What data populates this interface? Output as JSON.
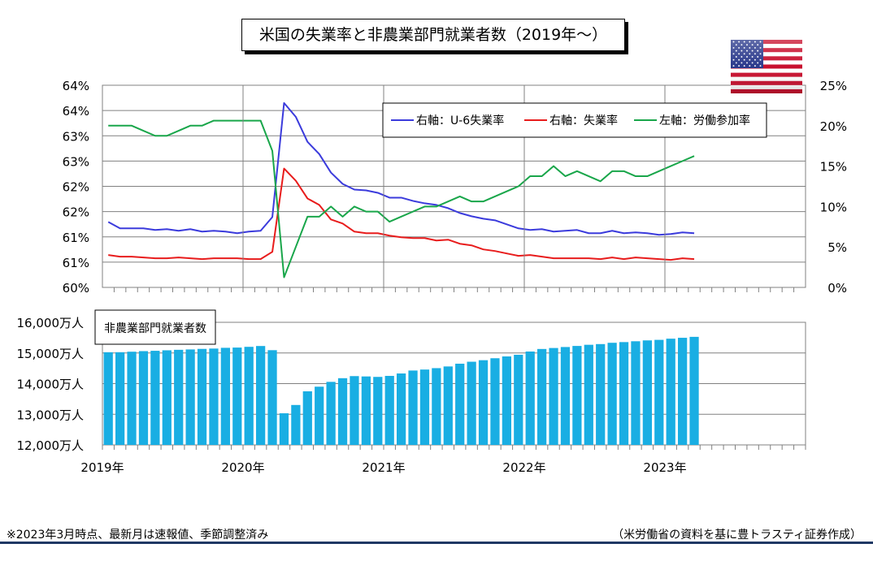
{
  "title": "米国の失業率と非農業部門就業者数（2019年～）",
  "colors": {
    "u6": "#3b3bdc",
    "unemployment": "#e81c1c",
    "participation": "#19a64a",
    "bars": "#19aee3",
    "footer_bar": "#1f3864"
  },
  "footnote": "※2023年3月時点、最新月は速報値、季節調整済み",
  "source": "（米労働省の資料を基に豊トラスティ証券作成）",
  "flag_icon": "us-flag-icon",
  "chart_data": [
    {
      "type": "line",
      "legend_position": "top-right",
      "x": [
        "2019-01",
        "2019-02",
        "2019-03",
        "2019-04",
        "2019-05",
        "2019-06",
        "2019-07",
        "2019-08",
        "2019-09",
        "2019-10",
        "2019-11",
        "2019-12",
        "2020-01",
        "2020-02",
        "2020-03",
        "2020-04",
        "2020-05",
        "2020-06",
        "2020-07",
        "2020-08",
        "2020-09",
        "2020-10",
        "2020-11",
        "2020-12",
        "2021-01",
        "2021-02",
        "2021-03",
        "2021-04",
        "2021-05",
        "2021-06",
        "2021-07",
        "2021-08",
        "2021-09",
        "2021-10",
        "2021-11",
        "2021-12",
        "2022-01",
        "2022-02",
        "2022-03",
        "2022-04",
        "2022-05",
        "2022-06",
        "2022-07",
        "2022-08",
        "2022-09",
        "2022-10",
        "2022-11",
        "2022-12",
        "2023-01",
        "2023-02",
        "2023-03"
      ],
      "x_tick_labels": [
        "2019年",
        "2020年",
        "2021年",
        "2022年",
        "2023年"
      ],
      "y_left_tick_labels": [
        "64%",
        "64%",
        "63%",
        "63%",
        "62%",
        "62%",
        "61%",
        "61%",
        "60%"
      ],
      "y_left_range": [
        60,
        64
      ],
      "y_right_tick_labels": [
        "25%",
        "20%",
        "15%",
        "10%",
        "5%",
        "0%"
      ],
      "y_right_range": [
        0,
        25
      ],
      "series": [
        {
          "name": "右軸：U-6失業率",
          "axis": "right",
          "color_key": "u6",
          "values": [
            8.1,
            7.3,
            7.3,
            7.3,
            7.1,
            7.2,
            7.0,
            7.2,
            6.9,
            7.0,
            6.9,
            6.7,
            6.9,
            7.0,
            8.7,
            22.8,
            21.1,
            18.0,
            16.5,
            14.2,
            12.8,
            12.1,
            12.0,
            11.7,
            11.1,
            11.1,
            10.7,
            10.4,
            10.2,
            9.8,
            9.2,
            8.8,
            8.5,
            8.3,
            7.8,
            7.3,
            7.1,
            7.2,
            6.9,
            7.0,
            7.1,
            6.7,
            6.7,
            7.0,
            6.7,
            6.8,
            6.7,
            6.5,
            6.6,
            6.8,
            6.7
          ]
        },
        {
          "name": "右軸：失業率",
          "axis": "right",
          "color_key": "unemployment",
          "values": [
            4.0,
            3.8,
            3.8,
            3.7,
            3.6,
            3.6,
            3.7,
            3.6,
            3.5,
            3.6,
            3.6,
            3.6,
            3.5,
            3.5,
            4.4,
            14.7,
            13.2,
            11.0,
            10.2,
            8.4,
            7.9,
            6.9,
            6.7,
            6.7,
            6.4,
            6.2,
            6.1,
            6.1,
            5.8,
            5.9,
            5.4,
            5.2,
            4.7,
            4.5,
            4.2,
            3.9,
            4.0,
            3.8,
            3.6,
            3.6,
            3.6,
            3.6,
            3.5,
            3.7,
            3.5,
            3.7,
            3.6,
            3.5,
            3.4,
            3.6,
            3.5
          ]
        },
        {
          "name": "左軸：労働参加率",
          "axis": "left",
          "color_key": "participation",
          "values": [
            63.2,
            63.2,
            63.2,
            63.1,
            63.0,
            63.0,
            63.1,
            63.2,
            63.2,
            63.3,
            63.3,
            63.3,
            63.3,
            63.3,
            62.7,
            60.2,
            60.8,
            61.4,
            61.4,
            61.6,
            61.4,
            61.6,
            61.5,
            61.5,
            61.3,
            61.4,
            61.5,
            61.6,
            61.6,
            61.7,
            61.8,
            61.7,
            61.7,
            61.8,
            61.9,
            62.0,
            62.2,
            62.2,
            62.4,
            62.2,
            62.3,
            62.2,
            62.1,
            62.3,
            62.3,
            62.2,
            62.2,
            62.3,
            62.4,
            62.5,
            62.6
          ]
        }
      ]
    },
    {
      "type": "bar",
      "title": "非農業部門就業者数",
      "x": [
        "2019-01",
        "2019-02",
        "2019-03",
        "2019-04",
        "2019-05",
        "2019-06",
        "2019-07",
        "2019-08",
        "2019-09",
        "2019-10",
        "2019-11",
        "2019-12",
        "2020-01",
        "2020-02",
        "2020-03",
        "2020-04",
        "2020-05",
        "2020-06",
        "2020-07",
        "2020-08",
        "2020-09",
        "2020-10",
        "2020-11",
        "2020-12",
        "2021-01",
        "2021-02",
        "2021-03",
        "2021-04",
        "2021-05",
        "2021-06",
        "2021-07",
        "2021-08",
        "2021-09",
        "2021-10",
        "2021-11",
        "2021-12",
        "2022-01",
        "2022-02",
        "2022-03",
        "2022-04",
        "2022-05",
        "2022-06",
        "2022-07",
        "2022-08",
        "2022-09",
        "2022-10",
        "2022-11",
        "2022-12",
        "2023-01",
        "2023-02",
        "2023-03"
      ],
      "x_tick_labels": [
        "2019年",
        "2020年",
        "2021年",
        "2022年",
        "2023年"
      ],
      "y_tick_labels": [
        "16,000万人",
        "15,000万人",
        "14,000万人",
        "13,000万人",
        "12,000万人"
      ],
      "ylim": [
        12000,
        16000
      ],
      "values": [
        15024,
        15025,
        15041,
        15060,
        15071,
        15087,
        15103,
        15115,
        15133,
        15144,
        15168,
        15176,
        15200,
        15227,
        15091,
        13032,
        13303,
        13749,
        13900,
        14057,
        14177,
        14245,
        14234,
        14219,
        14252,
        14331,
        14427,
        14459,
        14505,
        14560,
        14650,
        14714,
        14764,
        14828,
        14887,
        14941,
        15047,
        15130,
        15162,
        15194,
        15229,
        15267,
        15290,
        15332,
        15355,
        15382,
        15410,
        15428,
        15466,
        15495,
        15526
      ]
    }
  ]
}
